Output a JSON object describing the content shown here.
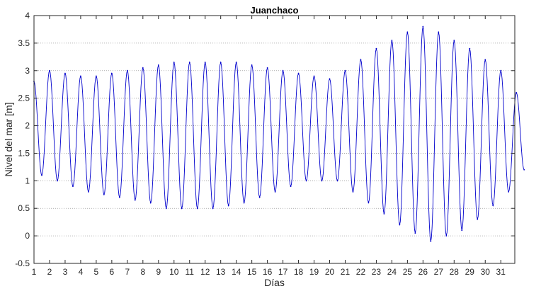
{
  "chart_data": {
    "type": "line",
    "title": "Juanchaco",
    "xlabel": "Días",
    "ylabel": "Nivel del mar [m]",
    "xlim": [
      1,
      31.9
    ],
    "ylim": [
      -0.5,
      4
    ],
    "xticks": [
      "1",
      "2",
      "3",
      "4",
      "5",
      "6",
      "7",
      "8",
      "9",
      "10",
      "11",
      "12",
      "13",
      "14",
      "15",
      "16",
      "17",
      "18",
      "19",
      "20",
      "21",
      "22",
      "23",
      "24",
      "25",
      "26",
      "27",
      "28",
      "29",
      "30",
      "31"
    ],
    "yticks": [
      "-0.5",
      "0",
      "0.5",
      "1",
      "1.5",
      "2",
      "2.5",
      "3",
      "3.5",
      "4"
    ],
    "grid": "horizontal dotted",
    "line_color": "#0000cc",
    "series": [
      {
        "samples_per_day": 2,
        "x_start": 1.0,
        "x_step": 0.5,
        "values": [
          2.8,
          1.1,
          3.0,
          1.0,
          2.95,
          0.9,
          2.9,
          0.8,
          2.9,
          0.75,
          2.95,
          0.7,
          3.0,
          0.65,
          3.05,
          0.6,
          3.1,
          0.5,
          3.15,
          0.5,
          3.15,
          0.5,
          3.15,
          0.5,
          3.15,
          0.55,
          3.15,
          0.6,
          3.1,
          0.7,
          3.05,
          0.8,
          3.0,
          0.9,
          2.95,
          1.0,
          2.9,
          1.0,
          2.85,
          1.0,
          3.0,
          0.8,
          3.2,
          0.6,
          3.4,
          0.4,
          3.55,
          0.2,
          3.7,
          0.05,
          3.8,
          -0.1,
          3.7,
          0.0,
          3.55,
          0.1,
          3.4,
          0.3,
          3.2,
          0.55,
          3.0,
          0.8,
          2.6,
          1.2
        ]
      }
    ]
  }
}
